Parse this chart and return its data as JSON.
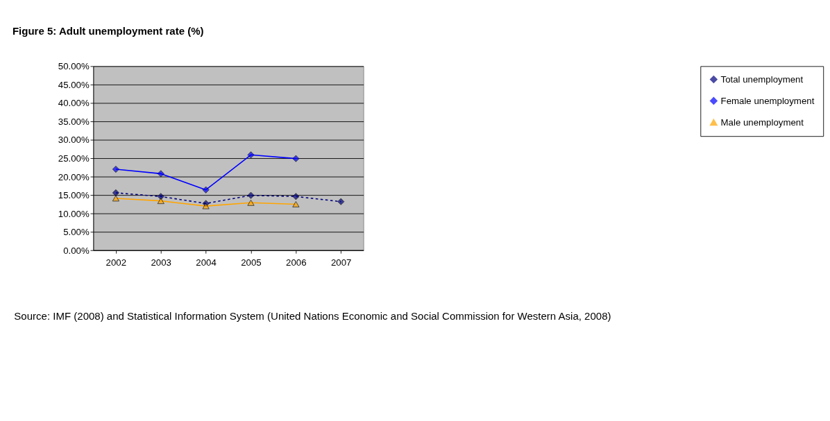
{
  "chart_data": {
    "type": "line",
    "title": "Figure 5: Adult unemployment rate (%)",
    "categories": [
      "2002",
      "2003",
      "2004",
      "2005",
      "2006",
      "2007"
    ],
    "series": [
      {
        "name": "Total unemployment",
        "color": "#000080",
        "marker": "diamond",
        "line_style": "dashed",
        "values": [
          15.6,
          14.6,
          12.7,
          14.9,
          14.6,
          13.2
        ]
      },
      {
        "name": "Female unemployment",
        "color": "#0000ff",
        "marker": "diamond",
        "line_style": "solid",
        "values": [
          22.0,
          20.8,
          16.4,
          25.9,
          24.9,
          null
        ]
      },
      {
        "name": "Male unemployment",
        "color": "#ffa500",
        "marker": "triangle",
        "line_style": "solid",
        "values": [
          14.1,
          13.4,
          12.0,
          12.9,
          12.5,
          null
        ]
      }
    ],
    "ylim": [
      0,
      50
    ],
    "yticks": [
      {
        "value": 0,
        "label": "0.00%"
      },
      {
        "value": 5,
        "label": "5.00%"
      },
      {
        "value": 10,
        "label": "10.00%"
      },
      {
        "value": 15,
        "label": "15.00%"
      },
      {
        "value": 20,
        "label": "20.00%"
      },
      {
        "value": 25,
        "label": "25.00%"
      },
      {
        "value": 30,
        "label": "30.00%"
      },
      {
        "value": 35,
        "label": "35.00%"
      },
      {
        "value": 40,
        "label": "40.00%"
      },
      {
        "value": 45,
        "label": "45.00%"
      },
      {
        "value": 50,
        "label": "50.00%"
      }
    ],
    "grid": "y",
    "legend": "right",
    "annotations": [
      "Source: IMF (2008) and Statistical Information System (United Nations Economic and Social Commission for Western Asia, 2008)"
    ]
  }
}
